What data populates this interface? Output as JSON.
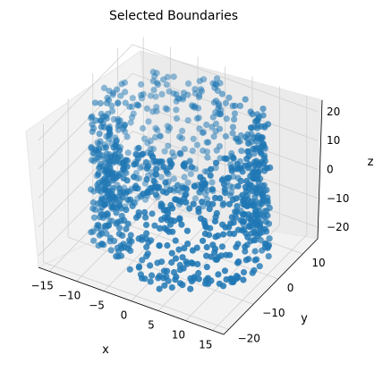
{
  "chart_data": {
    "type": "scatter",
    "projection": "3d",
    "title": "Selected Boundaries",
    "xlabel": "x",
    "ylabel": "y",
    "zlabel": "z",
    "xlim": [
      -17,
      17
    ],
    "ylim": [
      -22,
      16
    ],
    "zlim": [
      -24,
      24
    ],
    "x_ticks": [
      -15,
      -10,
      -5,
      0,
      5,
      10,
      15
    ],
    "y_ticks": [
      -20,
      -10,
      0,
      10
    ],
    "z_ticks": [
      -20,
      -10,
      0,
      10,
      20
    ],
    "grid": true,
    "marker_color": "#1f77b4",
    "description_points": "approx. 1000 points sampled on the surface of a cylinder-like boundary (radius ~14 in x/y, height -22..22 in z)",
    "series": [
      {
        "points_sample": [
          [
            14,
            0,
            20
          ],
          [
            -14,
            0,
            20
          ],
          [
            0,
            14,
            20
          ],
          [
            0,
            -14,
            20
          ],
          [
            10,
            10,
            15
          ],
          [
            -10,
            10,
            12
          ],
          [
            10,
            -10,
            8
          ],
          [
            -10,
            -10,
            4
          ],
          [
            14,
            0,
            0
          ],
          [
            -14,
            0,
            -2
          ],
          [
            0,
            14,
            -6
          ],
          [
            0,
            -14,
            -10
          ],
          [
            10,
            10,
            -14
          ],
          [
            -10,
            -10,
            -18
          ],
          [
            12,
            -7,
            -22
          ],
          [
            -12,
            7,
            -22
          ]
        ]
      }
    ]
  }
}
